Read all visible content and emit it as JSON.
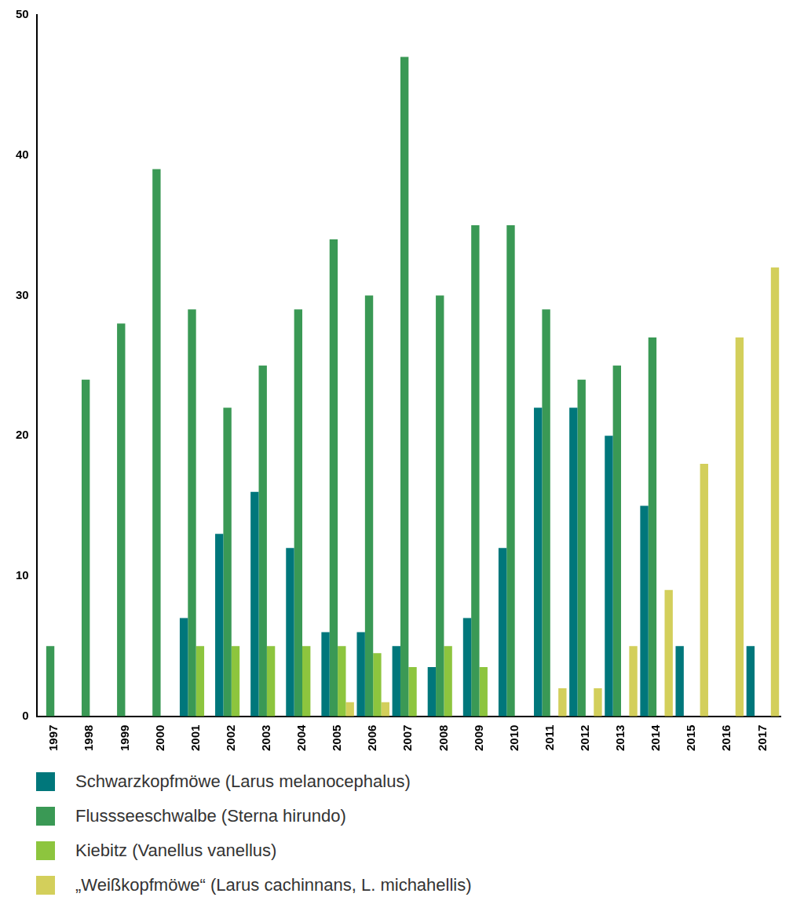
{
  "chart_data": {
    "type": "bar",
    "categories": [
      "1997",
      "1998",
      "1999",
      "2000",
      "2001",
      "2002",
      "2003",
      "2004",
      "2005",
      "2006",
      "2007",
      "2008",
      "2009",
      "2010",
      "2011",
      "2012",
      "2013",
      "2014",
      "2015",
      "2016",
      "2017"
    ],
    "series": [
      {
        "name": "Schwarzkopfmöwe (Larus melanocephalus)",
        "color": "#00777b",
        "values": [
          null,
          null,
          null,
          null,
          7,
          13,
          16,
          12,
          6,
          6,
          5,
          3.5,
          7,
          12,
          22,
          22,
          20,
          15,
          5,
          null,
          5
        ]
      },
      {
        "name": "Flussseeschwalbe (Sterna hirundo)",
        "color": "#3a9955",
        "values": [
          5,
          24,
          28,
          39,
          29,
          22,
          25,
          29,
          34,
          30,
          47,
          30,
          35,
          35,
          29,
          24,
          25,
          27,
          null,
          null,
          null
        ]
      },
      {
        "name": "Kiebitz (Vanellus vanellus)",
        "color": "#8dc53e",
        "values": [
          null,
          null,
          null,
          null,
          5,
          5,
          5,
          5,
          5,
          4.5,
          3.5,
          5,
          3.5,
          null,
          null,
          null,
          null,
          null,
          null,
          null,
          null
        ]
      },
      {
        "name": "„Weißkopfmöwe“ (Larus cachinnans, L. michahellis)",
        "color": "#d3cf5b",
        "values": [
          null,
          null,
          null,
          null,
          null,
          null,
          null,
          null,
          1,
          1,
          null,
          null,
          null,
          null,
          2,
          2,
          5,
          9,
          18,
          27,
          32
        ]
      }
    ],
    "ylim": [
      0,
      50
    ],
    "yticks": [
      0,
      10,
      20,
      30,
      40,
      50
    ],
    "grid": false,
    "legend": "bottom"
  }
}
